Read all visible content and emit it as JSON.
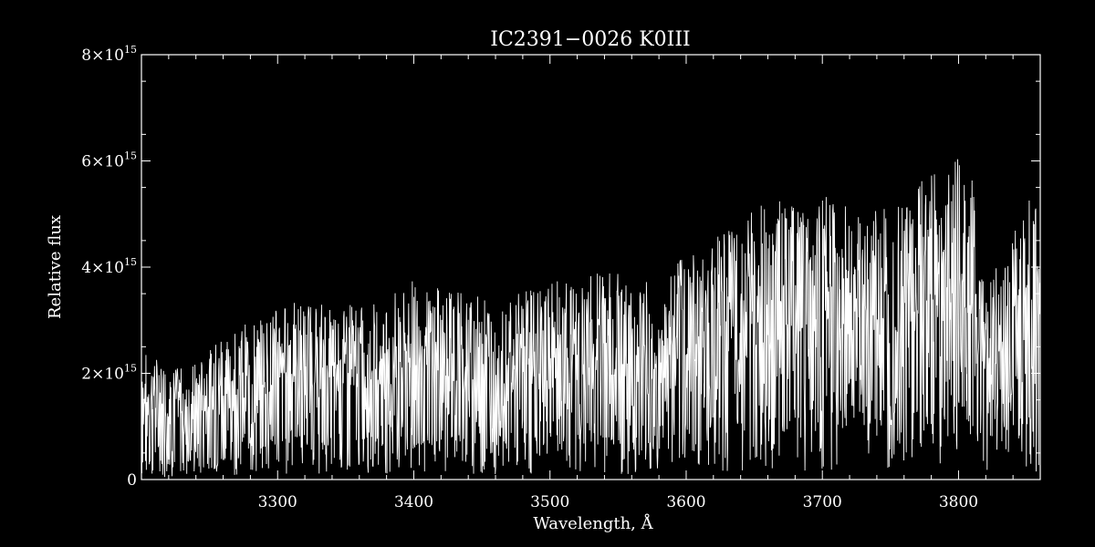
{
  "chart_data": {
    "type": "line",
    "title": "IC2391−0026   K0III",
    "xlabel": "Wavelength, Å",
    "ylabel": "Relative flux",
    "xlim": [
      3200,
      3860
    ],
    "ylim": [
      0,
      8000000000000000.0
    ],
    "x_ticks": [
      {
        "value": 3300,
        "label": "3300"
      },
      {
        "value": 3400,
        "label": "3400"
      },
      {
        "value": 3500,
        "label": "3500"
      },
      {
        "value": 3600,
        "label": "3600"
      },
      {
        "value": 3700,
        "label": "3700"
      },
      {
        "value": 3800,
        "label": "3800"
      }
    ],
    "y_ticks": [
      {
        "value": 0,
        "label": "0",
        "mantissa": "",
        "exponent": ""
      },
      {
        "value": 2000000000000000.0,
        "label": "2×10^15",
        "mantissa": "2×10",
        "exponent": "15"
      },
      {
        "value": 4000000000000000.0,
        "label": "4×10^15",
        "mantissa": "4×10",
        "exponent": "15"
      },
      {
        "value": 6000000000000000.0,
        "label": "6×10^15",
        "mantissa": "6×10",
        "exponent": "15"
      },
      {
        "value": 8000000000000000.0,
        "label": "8×10^15",
        "mantissa": "8×10",
        "exponent": "15"
      }
    ],
    "grid": false,
    "legend": "none",
    "line_color": "#ffffff",
    "background_color": "#000000",
    "series": [
      {
        "x": [
          3200,
          3210,
          3220,
          3230,
          3240,
          3250,
          3260,
          3270,
          3280,
          3290,
          3300,
          3310,
          3320,
          3330,
          3340,
          3350,
          3360,
          3370,
          3380,
          3390,
          3400,
          3410,
          3420,
          3430,
          3440,
          3450,
          3460,
          3470,
          3480,
          3490,
          3500,
          3510,
          3520,
          3530,
          3540,
          3550,
          3560,
          3570,
          3580,
          3590,
          3600,
          3610,
          3620,
          3630,
          3640,
          3650,
          3660,
          3670,
          3680,
          3690,
          3700,
          3710,
          3720,
          3730,
          3740,
          3750,
          3760,
          3770,
          3780,
          3790,
          3800,
          3810,
          3820,
          3830,
          3840,
          3850,
          3860
        ],
        "continuum": [
          2300000000000000.0,
          2200000000000000.0,
          2000000000000000.0,
          2000000000000000.0,
          2100000000000000.0,
          2300000000000000.0,
          2700000000000000.0,
          2800000000000000.0,
          2800000000000000.0,
          2900000000000000.0,
          3100000000000000.0,
          3200000000000000.0,
          3200000000000000.0,
          3200000000000000.0,
          3200000000000000.0,
          3300000000000000.0,
          3100000000000000.0,
          3200000000000000.0,
          3300000000000000.0,
          3400000000000000.0,
          3600000000000000.0,
          3400000000000000.0,
          3500000000000000.0,
          3400000000000000.0,
          3300000000000000.0,
          3300000000000000.0,
          3200000000000000.0,
          3300000000000000.0,
          3400000000000000.0,
          3400000000000000.0,
          3500000000000000.0,
          3600000000000000.0,
          3400000000000000.0,
          3700000000000000.0,
          3900000000000000.0,
          3700000000000000.0,
          3400000000000000.0,
          3600000000000000.0,
          2900000000000000.0,
          3800000000000000.0,
          4100000000000000.0,
          4300000000000000.0,
          4700000000000000.0,
          4900000000000000.0,
          4700000000000000.0,
          4900000000000000.0,
          5000000000000000.0,
          5000000000000000.0,
          5000000000000000.0,
          4900000000000000.0,
          5200000000000000.0,
          5000000000000000.0,
          4900000000000000.0,
          4700000000000000.0,
          4900000000000000.0,
          5000000000000000.0,
          5000000000000000.0,
          5400000000000000.0,
          5800000000000000.0,
          5500000000000000.0,
          5800000000000000.0,
          5500000000000000.0,
          3900000000000000.0,
          3800000000000000.0,
          4400000000000000.0,
          5000000000000000.0,
          5200000000000000.0
        ],
        "floor": [
          200000000000000.0,
          200000000000000.0,
          200000000000000.0,
          200000000000000.0,
          300000000000000.0,
          300000000000000.0,
          400000000000000.0,
          400000000000000.0,
          400000000000000.0,
          400000000000000.0,
          500000000000000.0,
          500000000000000.0,
          500000000000000.0,
          500000000000000.0,
          500000000000000.0,
          500000000000000.0,
          500000000000000.0,
          500000000000000.0,
          500000000000000.0,
          500000000000000.0,
          500000000000000.0,
          500000000000000.0,
          500000000000000.0,
          500000000000000.0,
          500000000000000.0,
          500000000000000.0,
          500000000000000.0,
          500000000000000.0,
          500000000000000.0,
          500000000000000.0,
          500000000000000.0,
          500000000000000.0,
          500000000000000.0,
          500000000000000.0,
          500000000000000.0,
          500000000000000.0,
          500000000000000.0,
          500000000000000.0,
          400000000000000.0,
          500000000000000.0,
          600000000000000.0,
          600000000000000.0,
          700000000000000.0,
          700000000000000.0,
          700000000000000.0,
          800000000000000.0,
          800000000000000.0,
          800000000000000.0,
          800000000000000.0,
          800000000000000.0,
          800000000000000.0,
          800000000000000.0,
          800000000000000.0,
          800000000000000.0,
          800000000000000.0,
          800000000000000.0,
          800000000000000.0,
          900000000000000.0,
          900000000000000.0,
          900000000000000.0,
          900000000000000.0,
          800000000000000.0,
          600000000000000.0,
          600000000000000.0,
          700000000000000.0,
          700000000000000.0,
          700000000000000.0
        ]
      }
    ]
  }
}
